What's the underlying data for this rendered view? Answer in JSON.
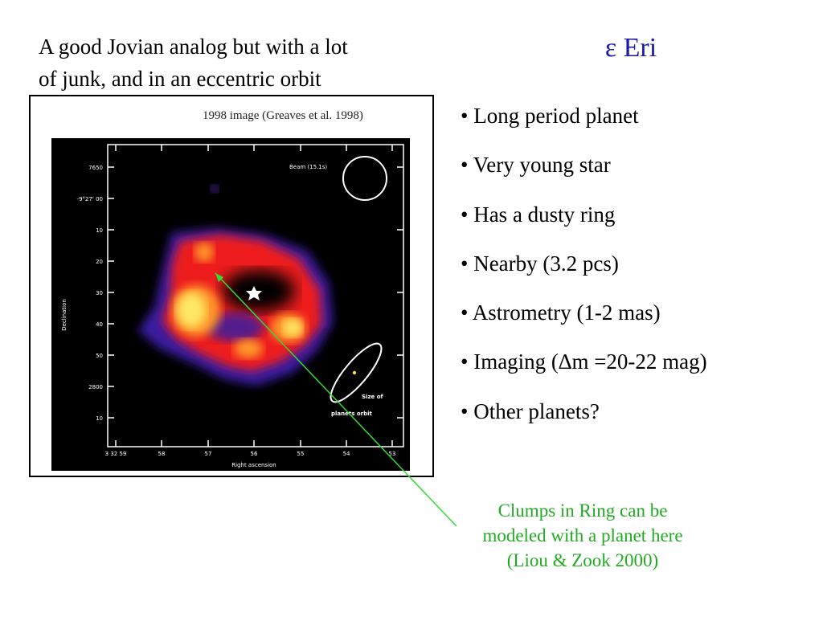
{
  "slide": {
    "title": "ε Eri",
    "subtitle_lines": [
      "A good Jovian analog but with a lot",
      "of junk, and in an eccentric orbit"
    ],
    "bullets": [
      "• Long period planet",
      "• Very young star",
      "• Has a dusty ring",
      "• Nearby (3.2 pcs)",
      "• Astrometry (1-2 mas)",
      "• Imaging (∆m =20-22 mag)",
      "• Other planets?"
    ],
    "note_lines": [
      "Clumps in Ring can be",
      "modeled with a planet here",
      "(Liou & Zook 2000)"
    ]
  },
  "figure": {
    "caption": "1998 image (Greaves et al. 1998)",
    "y_ticks": [
      "7650",
      "-9°27' 00",
      "10",
      "20",
      "30",
      "40",
      "50",
      "2800",
      "10"
    ],
    "x_ticks": [
      "3 32 59",
      "58",
      "57",
      "56",
      "55",
      "54",
      "53"
    ],
    "ylabel": "Declination",
    "xlabel": "Right ascension",
    "beam_label": "Beam (15.1s)",
    "orbit_label": "Size of",
    "orbit_label2": "planets orbit"
  },
  "colors": {
    "title": "#1a1aaa",
    "note": "#22aa22",
    "arrow": "#33dd33",
    "plot_bg": "#000000",
    "heat_low": "#3a1aa0",
    "heat_mid": "#ee1c1c",
    "heat_high": "#ffe866"
  }
}
